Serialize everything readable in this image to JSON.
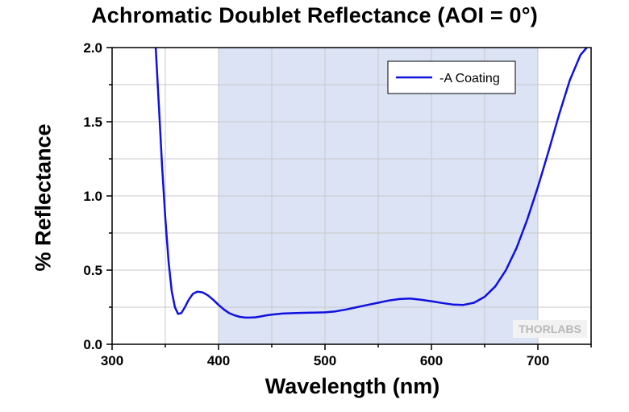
{
  "chart_data": {
    "type": "line",
    "title": "Achromatic Doublet Reflectance (AOI = 0°)",
    "xlabel": "Wavelength (nm)",
    "ylabel": "% Reflectance",
    "xlim": [
      300,
      750
    ],
    "ylim": [
      0.0,
      2.0
    ],
    "x_ticks": [
      300,
      400,
      500,
      600,
      700
    ],
    "y_ticks": [
      "0.0",
      "0.5",
      "1.0",
      "1.5",
      "2.0"
    ],
    "grid": true,
    "legend_position": "top-right",
    "highlight_band": [
      400,
      700
    ],
    "colors": {
      "series": "#1010e0",
      "band": "#dbe3f4",
      "grid": "#c8c8c8"
    },
    "watermark": "THORLABS",
    "series": [
      {
        "name": "-A Coating",
        "x": [
          341,
          344,
          347,
          350,
          353,
          356,
          359,
          362,
          365,
          368,
          372,
          376,
          380,
          385,
          390,
          395,
          400,
          405,
          410,
          415,
          420,
          425,
          430,
          435,
          440,
          445,
          450,
          460,
          470,
          480,
          490,
          500,
          510,
          520,
          530,
          540,
          550,
          560,
          570,
          580,
          590,
          600,
          610,
          620,
          630,
          640,
          650,
          660,
          670,
          680,
          690,
          700,
          710,
          720,
          730,
          740,
          746
        ],
        "y": [
          2.0,
          1.6,
          1.2,
          0.85,
          0.56,
          0.36,
          0.25,
          0.205,
          0.21,
          0.245,
          0.3,
          0.34,
          0.355,
          0.35,
          0.33,
          0.3,
          0.265,
          0.235,
          0.21,
          0.195,
          0.185,
          0.18,
          0.18,
          0.182,
          0.188,
          0.195,
          0.2,
          0.207,
          0.21,
          0.212,
          0.213,
          0.215,
          0.222,
          0.235,
          0.25,
          0.265,
          0.28,
          0.295,
          0.305,
          0.308,
          0.3,
          0.29,
          0.278,
          0.268,
          0.265,
          0.28,
          0.32,
          0.39,
          0.5,
          0.65,
          0.84,
          1.06,
          1.3,
          1.55,
          1.78,
          1.95,
          2.0
        ]
      }
    ]
  }
}
